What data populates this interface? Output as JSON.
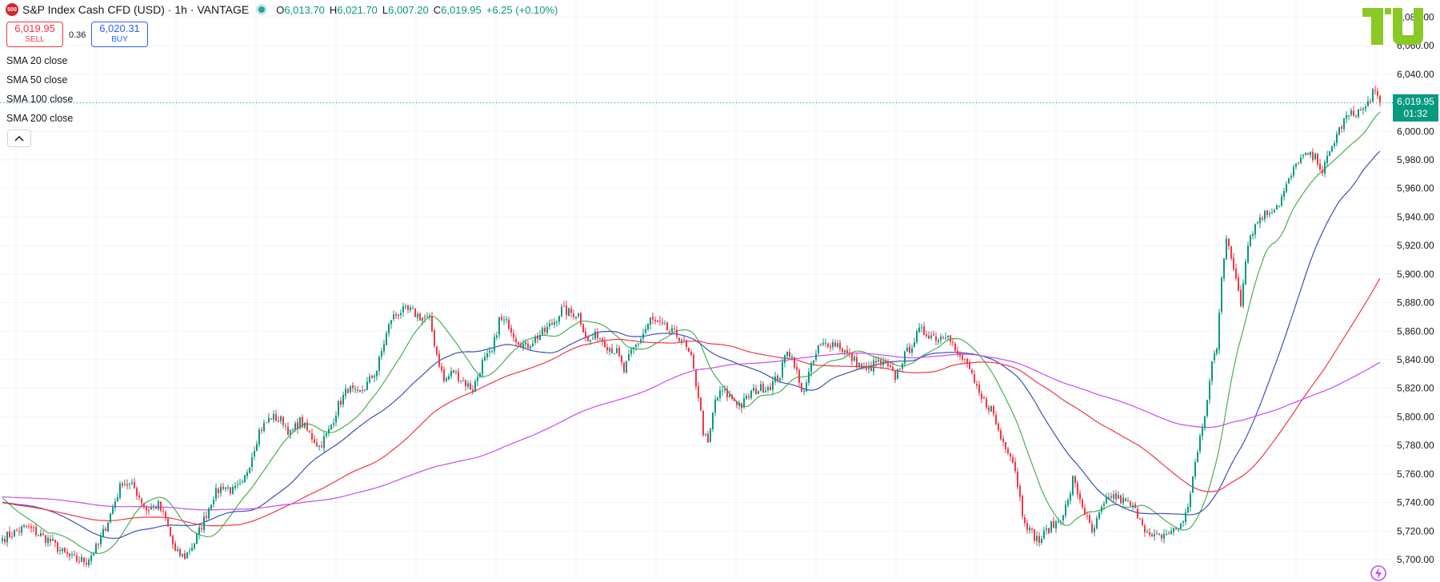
{
  "header": {
    "symbol_badge": "500",
    "title": "S&P Index Cash CFD (USD) · 1h · VANTAGE",
    "ohlc": [
      {
        "key": "O",
        "value": "6,013.70"
      },
      {
        "key": "H",
        "value": "6,021.70"
      },
      {
        "key": "L",
        "value": "6,007.20"
      },
      {
        "key": "C",
        "value": "6,019.95"
      }
    ],
    "change": "+6.25 (+0.10%)"
  },
  "trade": {
    "sell_price": "6,019.95",
    "sell_label": "SELL",
    "spread": "0.36",
    "buy_price": "6,020.31",
    "buy_label": "BUY"
  },
  "indicators": [
    "SMA 20 close",
    "SMA 50 close",
    "SMA 100 close",
    "SMA 200 close"
  ],
  "last_price": {
    "value": "6,019.95",
    "countdown": "01:32"
  },
  "colors": {
    "up": "#089981",
    "down": "#f23645",
    "sma20": "#4caf50",
    "sma50": "#3f51b5",
    "sma100": "#f23645",
    "sma200": "#c44bf5",
    "grid": "#f0f3fa",
    "brand_logo": "#8ac926"
  },
  "chart_data": {
    "type": "candlestick",
    "interval": "1h",
    "y_axis": {
      "position": "right",
      "ticks": [
        "5,700.00",
        "5,720.00",
        "5,740.00",
        "5,760.00",
        "5,780.00",
        "5,800.00",
        "5,820.00",
        "5,840.00",
        "5,860.00",
        "5,880.00",
        "5,900.00",
        "5,920.00",
        "5,940.00",
        "5,960.00",
        "5,980.00",
        "6,000.00",
        "6,020.00",
        "6,040.00",
        "6,060.00",
        "6,080.00"
      ],
      "ylim": [
        5686,
        6092
      ]
    },
    "grid": true,
    "last_close": 6019.95,
    "price_anchors": [
      [
        0,
        5715
      ],
      [
        10,
        5723
      ],
      [
        20,
        5713
      ],
      [
        25,
        5705
      ],
      [
        30,
        5700
      ],
      [
        35,
        5699
      ],
      [
        40,
        5710
      ],
      [
        45,
        5732
      ],
      [
        50,
        5755
      ],
      [
        55,
        5750
      ],
      [
        60,
        5735
      ],
      [
        65,
        5738
      ],
      [
        68,
        5728
      ],
      [
        72,
        5705
      ],
      [
        76,
        5702
      ],
      [
        80,
        5712
      ],
      [
        84,
        5728
      ],
      [
        88,
        5745
      ],
      [
        92,
        5752
      ],
      [
        96,
        5748
      ],
      [
        100,
        5752
      ],
      [
        103,
        5768
      ],
      [
        107,
        5790
      ],
      [
        112,
        5800
      ],
      [
        117,
        5797
      ],
      [
        120,
        5788
      ],
      [
        124,
        5797
      ],
      [
        128,
        5788
      ],
      [
        132,
        5779
      ],
      [
        136,
        5790
      ],
      [
        140,
        5808
      ],
      [
        144,
        5820
      ],
      [
        148,
        5815
      ],
      [
        152,
        5823
      ],
      [
        156,
        5833
      ],
      [
        159,
        5852
      ],
      [
        162,
        5869
      ],
      [
        166,
        5874
      ],
      [
        170,
        5874
      ],
      [
        174,
        5870
      ],
      [
        178,
        5868
      ],
      [
        181,
        5844
      ],
      [
        184,
        5825
      ],
      [
        188,
        5832
      ],
      [
        192,
        5825
      ],
      [
        196,
        5819
      ],
      [
        200,
        5838
      ],
      [
        204,
        5845
      ],
      [
        207,
        5868
      ],
      [
        211,
        5865
      ],
      [
        214,
        5855
      ],
      [
        218,
        5849
      ],
      [
        222,
        5855
      ],
      [
        226,
        5860
      ],
      [
        230,
        5867
      ],
      [
        233,
        5875
      ],
      [
        236,
        5873
      ],
      [
        240,
        5872
      ],
      [
        244,
        5852
      ],
      [
        248,
        5858
      ],
      [
        252,
        5850
      ],
      [
        256,
        5845
      ],
      [
        259,
        5832
      ],
      [
        262,
        5845
      ],
      [
        266,
        5855
      ],
      [
        270,
        5868
      ],
      [
        274,
        5864
      ],
      [
        278,
        5860
      ],
      [
        283,
        5855
      ],
      [
        287,
        5840
      ],
      [
        290,
        5815
      ],
      [
        292,
        5790
      ],
      [
        294,
        5780
      ],
      [
        297,
        5812
      ],
      [
        300,
        5818
      ],
      [
        304,
        5813
      ],
      [
        308,
        5808
      ],
      [
        312,
        5817
      ],
      [
        316,
        5820
      ],
      [
        320,
        5822
      ],
      [
        324,
        5829
      ],
      [
        327,
        5848
      ],
      [
        330,
        5838
      ],
      [
        333,
        5816
      ],
      [
        336,
        5830
      ],
      [
        340,
        5848
      ],
      [
        344,
        5852
      ],
      [
        348,
        5851
      ],
      [
        352,
        5844
      ],
      [
        356,
        5838
      ],
      [
        360,
        5832
      ],
      [
        364,
        5838
      ],
      [
        368,
        5836
      ],
      [
        372,
        5828
      ],
      [
        375,
        5840
      ],
      [
        378,
        5848
      ],
      [
        382,
        5860
      ],
      [
        386,
        5858
      ],
      [
        390,
        5855
      ],
      [
        394,
        5860
      ],
      [
        398,
        5842
      ],
      [
        402,
        5838
      ],
      [
        405,
        5822
      ],
      [
        408,
        5812
      ],
      [
        412,
        5806
      ],
      [
        416,
        5785
      ],
      [
        420,
        5775
      ],
      [
        422,
        5763
      ],
      [
        425,
        5733
      ],
      [
        428,
        5720
      ],
      [
        432,
        5713
      ],
      [
        436,
        5722
      ],
      [
        440,
        5727
      ],
      [
        444,
        5740
      ],
      [
        446,
        5756
      ],
      [
        450,
        5738
      ],
      [
        454,
        5718
      ],
      [
        458,
        5735
      ],
      [
        462,
        5745
      ],
      [
        466,
        5742
      ],
      [
        470,
        5738
      ],
      [
        474,
        5730
      ],
      [
        478,
        5715
      ],
      [
        482,
        5716
      ],
      [
        486,
        5719
      ],
      [
        490,
        5722
      ],
      [
        494,
        5735
      ],
      [
        496,
        5760
      ],
      [
        498,
        5775
      ],
      [
        500,
        5792
      ],
      [
        502,
        5811
      ],
      [
        504,
        5838
      ],
      [
        506,
        5850
      ],
      [
        508,
        5900
      ],
      [
        510,
        5924
      ],
      [
        512,
        5910
      ],
      [
        514,
        5898
      ],
      [
        516,
        5880
      ],
      [
        518,
        5912
      ],
      [
        520,
        5928
      ],
      [
        524,
        5940
      ],
      [
        528,
        5944
      ],
      [
        532,
        5950
      ],
      [
        536,
        5965
      ],
      [
        540,
        5980
      ],
      [
        544,
        5983
      ],
      [
        548,
        5980
      ],
      [
        550,
        5972
      ],
      [
        552,
        5980
      ],
      [
        556,
        5998
      ],
      [
        560,
        6010
      ],
      [
        564,
        6013
      ],
      [
        568,
        6016
      ],
      [
        571,
        6028
      ],
      [
        574,
        6020
      ]
    ],
    "series": [
      {
        "name": "SMA 20 close",
        "period": 20
      },
      {
        "name": "SMA 50 close",
        "period": 50
      },
      {
        "name": "SMA 100 close",
        "period": 100
      },
      {
        "name": "SMA 200 close",
        "period": 200
      }
    ]
  }
}
